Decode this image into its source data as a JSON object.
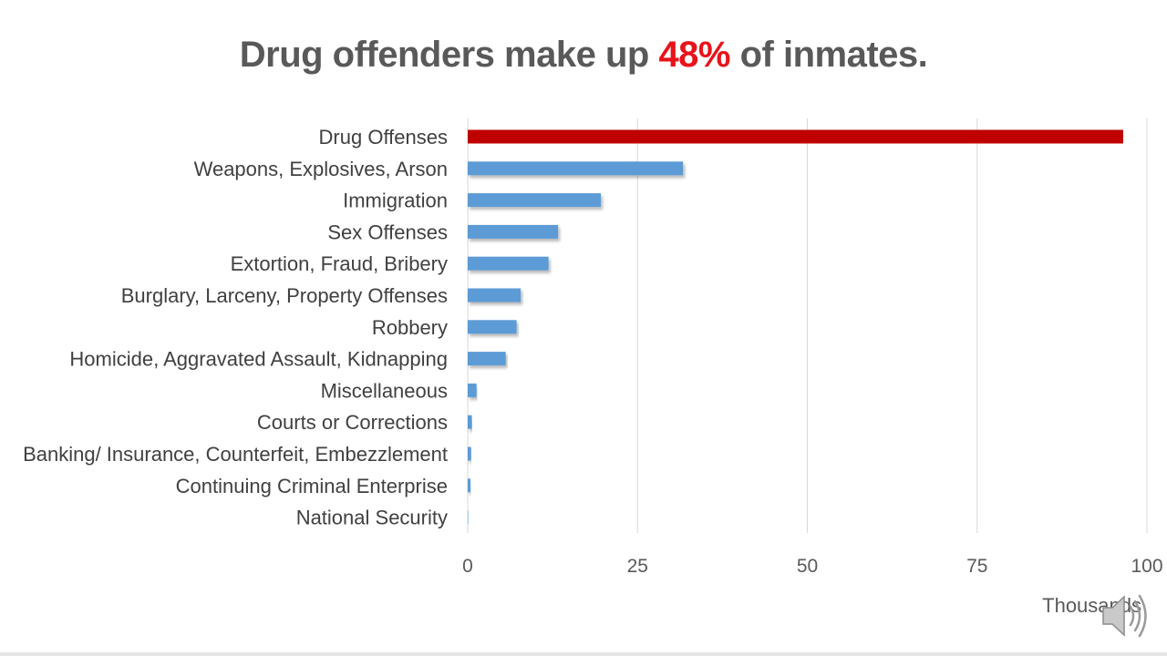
{
  "title": {
    "before": "Drug offenders make up ",
    "highlight": "48%",
    "after": " of inmates."
  },
  "colors": {
    "highlight": "#e8131b",
    "bar_highlight": "#c00000",
    "bar_default": "#5b9bd5",
    "grid": "#d9d9d9",
    "text": "#404040"
  },
  "speaker_icon": "speaker-audio-icon",
  "chart_data": {
    "type": "bar",
    "orientation": "horizontal",
    "categories": [
      "Drug Offenses",
      "Weapons, Explosives, Arson",
      "Immigration",
      "Sex Offenses",
      "Extortion, Fraud, Bribery",
      "Burglary, Larceny, Property Offenses",
      "Robbery",
      "Homicide, Aggravated Assault,  Kidnapping",
      "Miscellaneous",
      "Courts or Corrections",
      "Banking/ Insurance, Counterfeit, Embezzlement",
      "Continuing Criminal Enterprise",
      "National Security"
    ],
    "values": [
      96.5,
      31.7,
      19.6,
      13.3,
      11.9,
      7.8,
      7.2,
      5.6,
      1.3,
      0.6,
      0.5,
      0.4,
      0.01
    ],
    "highlight_index": 0,
    "xlim": [
      0,
      100
    ],
    "xticks": [
      "0",
      "25",
      "50",
      "75",
      "100"
    ],
    "unit_label": "Thousands",
    "grid": true
  }
}
